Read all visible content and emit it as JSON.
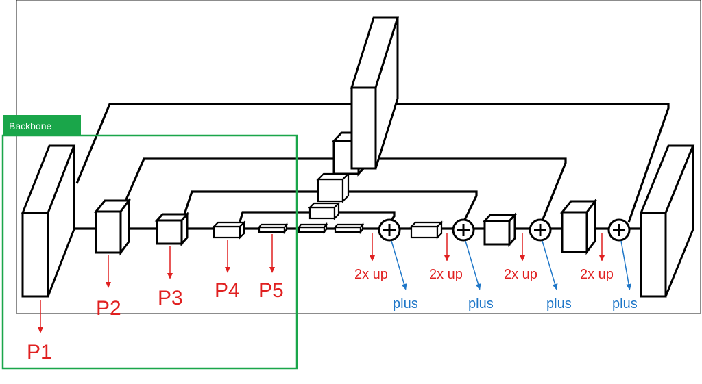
{
  "colors": {
    "backbone": "#1aa64a",
    "red": "#e02020",
    "blue": "#1f77c8",
    "black": "#000000"
  },
  "backbone": {
    "label": "Backbone"
  },
  "levels": [
    {
      "label": "P1"
    },
    {
      "label": "P2"
    },
    {
      "label": "P3"
    },
    {
      "label": "P4"
    },
    {
      "label": "P5"
    }
  ],
  "ops": [
    {
      "upsample": "2x up",
      "merge": "plus"
    },
    {
      "upsample": "2x up",
      "merge": "plus"
    },
    {
      "upsample": "2x up",
      "merge": "plus"
    },
    {
      "upsample": "2x up",
      "merge": "plus"
    }
  ],
  "icons": {
    "merge_node": "plus-circle-icon"
  }
}
